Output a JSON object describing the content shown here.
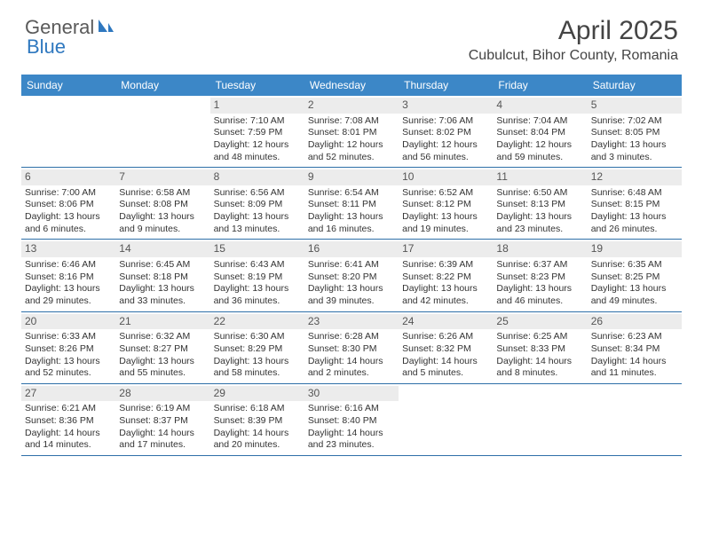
{
  "logo": {
    "text1": "General",
    "text2": "Blue"
  },
  "title": "April 2025",
  "location": "Cubulcut, Bihor County, Romania",
  "colors": {
    "header_bg": "#3c87c7",
    "header_text": "#ffffff",
    "daynum_bg": "#ececec",
    "rule": "#2e6fa8",
    "logo_blue": "#2f78bf",
    "logo_gray": "#5a5a5a"
  },
  "daysOfWeek": [
    "Sunday",
    "Monday",
    "Tuesday",
    "Wednesday",
    "Thursday",
    "Friday",
    "Saturday"
  ],
  "weeks": [
    [
      {
        "blank": true
      },
      {
        "blank": true
      },
      {
        "n": "1",
        "sr": "Sunrise: 7:10 AM",
        "ss": "Sunset: 7:59 PM",
        "d1": "Daylight: 12 hours",
        "d2": "and 48 minutes."
      },
      {
        "n": "2",
        "sr": "Sunrise: 7:08 AM",
        "ss": "Sunset: 8:01 PM",
        "d1": "Daylight: 12 hours",
        "d2": "and 52 minutes."
      },
      {
        "n": "3",
        "sr": "Sunrise: 7:06 AM",
        "ss": "Sunset: 8:02 PM",
        "d1": "Daylight: 12 hours",
        "d2": "and 56 minutes."
      },
      {
        "n": "4",
        "sr": "Sunrise: 7:04 AM",
        "ss": "Sunset: 8:04 PM",
        "d1": "Daylight: 12 hours",
        "d2": "and 59 minutes."
      },
      {
        "n": "5",
        "sr": "Sunrise: 7:02 AM",
        "ss": "Sunset: 8:05 PM",
        "d1": "Daylight: 13 hours",
        "d2": "and 3 minutes."
      }
    ],
    [
      {
        "n": "6",
        "sr": "Sunrise: 7:00 AM",
        "ss": "Sunset: 8:06 PM",
        "d1": "Daylight: 13 hours",
        "d2": "and 6 minutes."
      },
      {
        "n": "7",
        "sr": "Sunrise: 6:58 AM",
        "ss": "Sunset: 8:08 PM",
        "d1": "Daylight: 13 hours",
        "d2": "and 9 minutes."
      },
      {
        "n": "8",
        "sr": "Sunrise: 6:56 AM",
        "ss": "Sunset: 8:09 PM",
        "d1": "Daylight: 13 hours",
        "d2": "and 13 minutes."
      },
      {
        "n": "9",
        "sr": "Sunrise: 6:54 AM",
        "ss": "Sunset: 8:11 PM",
        "d1": "Daylight: 13 hours",
        "d2": "and 16 minutes."
      },
      {
        "n": "10",
        "sr": "Sunrise: 6:52 AM",
        "ss": "Sunset: 8:12 PM",
        "d1": "Daylight: 13 hours",
        "d2": "and 19 minutes."
      },
      {
        "n": "11",
        "sr": "Sunrise: 6:50 AM",
        "ss": "Sunset: 8:13 PM",
        "d1": "Daylight: 13 hours",
        "d2": "and 23 minutes."
      },
      {
        "n": "12",
        "sr": "Sunrise: 6:48 AM",
        "ss": "Sunset: 8:15 PM",
        "d1": "Daylight: 13 hours",
        "d2": "and 26 minutes."
      }
    ],
    [
      {
        "n": "13",
        "sr": "Sunrise: 6:46 AM",
        "ss": "Sunset: 8:16 PM",
        "d1": "Daylight: 13 hours",
        "d2": "and 29 minutes."
      },
      {
        "n": "14",
        "sr": "Sunrise: 6:45 AM",
        "ss": "Sunset: 8:18 PM",
        "d1": "Daylight: 13 hours",
        "d2": "and 33 minutes."
      },
      {
        "n": "15",
        "sr": "Sunrise: 6:43 AM",
        "ss": "Sunset: 8:19 PM",
        "d1": "Daylight: 13 hours",
        "d2": "and 36 minutes."
      },
      {
        "n": "16",
        "sr": "Sunrise: 6:41 AM",
        "ss": "Sunset: 8:20 PM",
        "d1": "Daylight: 13 hours",
        "d2": "and 39 minutes."
      },
      {
        "n": "17",
        "sr": "Sunrise: 6:39 AM",
        "ss": "Sunset: 8:22 PM",
        "d1": "Daylight: 13 hours",
        "d2": "and 42 minutes."
      },
      {
        "n": "18",
        "sr": "Sunrise: 6:37 AM",
        "ss": "Sunset: 8:23 PM",
        "d1": "Daylight: 13 hours",
        "d2": "and 46 minutes."
      },
      {
        "n": "19",
        "sr": "Sunrise: 6:35 AM",
        "ss": "Sunset: 8:25 PM",
        "d1": "Daylight: 13 hours",
        "d2": "and 49 minutes."
      }
    ],
    [
      {
        "n": "20",
        "sr": "Sunrise: 6:33 AM",
        "ss": "Sunset: 8:26 PM",
        "d1": "Daylight: 13 hours",
        "d2": "and 52 minutes."
      },
      {
        "n": "21",
        "sr": "Sunrise: 6:32 AM",
        "ss": "Sunset: 8:27 PM",
        "d1": "Daylight: 13 hours",
        "d2": "and 55 minutes."
      },
      {
        "n": "22",
        "sr": "Sunrise: 6:30 AM",
        "ss": "Sunset: 8:29 PM",
        "d1": "Daylight: 13 hours",
        "d2": "and 58 minutes."
      },
      {
        "n": "23",
        "sr": "Sunrise: 6:28 AM",
        "ss": "Sunset: 8:30 PM",
        "d1": "Daylight: 14 hours",
        "d2": "and 2 minutes."
      },
      {
        "n": "24",
        "sr": "Sunrise: 6:26 AM",
        "ss": "Sunset: 8:32 PM",
        "d1": "Daylight: 14 hours",
        "d2": "and 5 minutes."
      },
      {
        "n": "25",
        "sr": "Sunrise: 6:25 AM",
        "ss": "Sunset: 8:33 PM",
        "d1": "Daylight: 14 hours",
        "d2": "and 8 minutes."
      },
      {
        "n": "26",
        "sr": "Sunrise: 6:23 AM",
        "ss": "Sunset: 8:34 PM",
        "d1": "Daylight: 14 hours",
        "d2": "and 11 minutes."
      }
    ],
    [
      {
        "n": "27",
        "sr": "Sunrise: 6:21 AM",
        "ss": "Sunset: 8:36 PM",
        "d1": "Daylight: 14 hours",
        "d2": "and 14 minutes."
      },
      {
        "n": "28",
        "sr": "Sunrise: 6:19 AM",
        "ss": "Sunset: 8:37 PM",
        "d1": "Daylight: 14 hours",
        "d2": "and 17 minutes."
      },
      {
        "n": "29",
        "sr": "Sunrise: 6:18 AM",
        "ss": "Sunset: 8:39 PM",
        "d1": "Daylight: 14 hours",
        "d2": "and 20 minutes."
      },
      {
        "n": "30",
        "sr": "Sunrise: 6:16 AM",
        "ss": "Sunset: 8:40 PM",
        "d1": "Daylight: 14 hours",
        "d2": "and 23 minutes."
      },
      {
        "blank": true
      },
      {
        "blank": true
      },
      {
        "blank": true
      }
    ]
  ]
}
